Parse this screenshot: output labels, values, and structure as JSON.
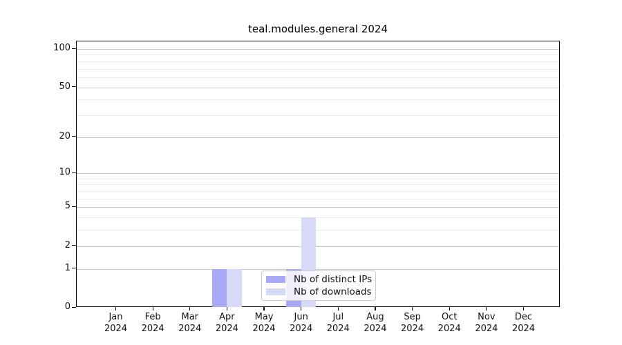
{
  "chart_data": {
    "type": "bar",
    "title": "teal.modules.general 2024",
    "categories": [
      "Jan",
      "Feb",
      "Mar",
      "Apr",
      "May",
      "Jun",
      "Jul",
      "Aug",
      "Sep",
      "Oct",
      "Nov",
      "Dec"
    ],
    "x_year": "2024",
    "series": [
      {
        "name": "Nb of distinct IPs",
        "color": "#a8a8f5",
        "values": [
          0,
          0,
          0,
          1,
          0,
          1,
          0,
          0,
          0,
          0,
          0,
          0
        ]
      },
      {
        "name": "Nb of downloads",
        "color": "#d8d8f8",
        "values": [
          0,
          0,
          0,
          1,
          0,
          4,
          0,
          0,
          0,
          0,
          0,
          0
        ]
      }
    ],
    "y_axis": {
      "scale": "log1p",
      "major_ticks": [
        0,
        1,
        2,
        5,
        10,
        20,
        50,
        100
      ],
      "minor_gridlines": [
        3,
        4,
        6,
        7,
        8,
        9,
        30,
        40,
        60,
        70,
        80,
        90
      ],
      "range": [
        0,
        100
      ]
    },
    "grid": "horizontal",
    "legend_position": "inside-bottom-center"
  }
}
